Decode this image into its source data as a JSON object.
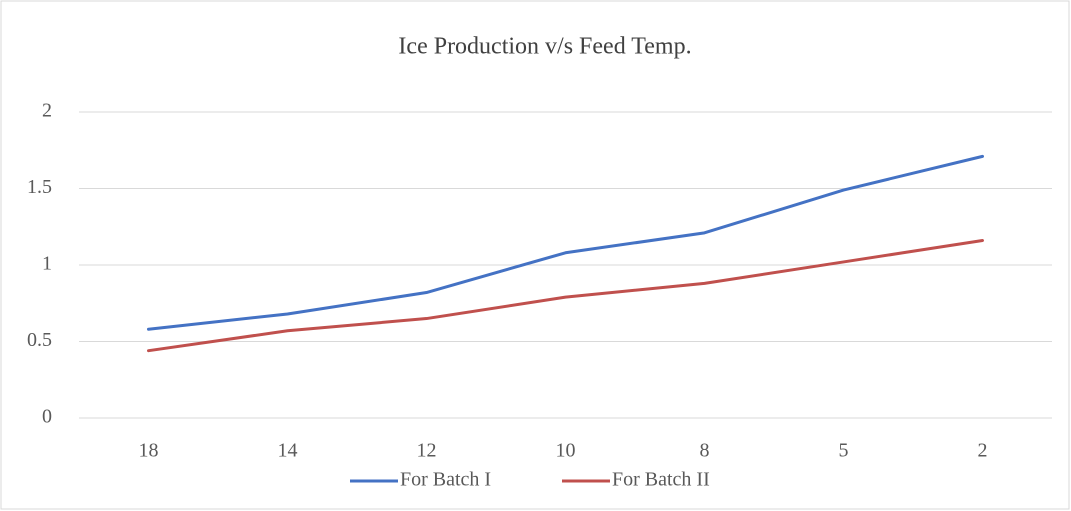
{
  "chart_data": {
    "type": "line",
    "title": "Ice Production v/s Feed Temp.",
    "categories": [
      "18",
      "14",
      "12",
      "10",
      "8",
      "5",
      "2"
    ],
    "series": [
      {
        "name": "For Batch I",
        "color": "#4472c4",
        "values": [
          0.58,
          0.68,
          0.82,
          1.08,
          1.21,
          1.49,
          1.71
        ]
      },
      {
        "name": "For Batch II",
        "color": "#c0504d",
        "values": [
          0.44,
          0.57,
          0.65,
          0.79,
          0.88,
          1.02,
          1.16
        ]
      }
    ],
    "ylim": [
      0,
      2
    ],
    "yticks": [
      0,
      0.5,
      1,
      1.5,
      2
    ],
    "grid": true,
    "legend": "bottom"
  }
}
